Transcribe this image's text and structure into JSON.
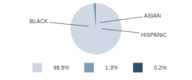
{
  "chart_data": {
    "type": "pie",
    "categories": [
      "98.5%",
      "1.3%",
      "0.2%"
    ],
    "values": [
      98.5,
      1.3,
      0.2
    ],
    "colors": [
      "#d0d8e4",
      "#7a9db5",
      "#2d5068"
    ],
    "annotations": [
      "BLACK",
      "ASIAN",
      "HISPANIC"
    ],
    "legend": "bottom"
  }
}
